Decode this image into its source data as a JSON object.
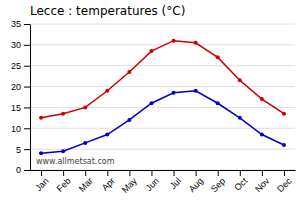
{
  "chart_data": {
    "type": "line",
    "title": "Lecce : temperatures (°C)",
    "categories": [
      "Jan",
      "Feb",
      "Mar",
      "Apr",
      "May",
      "Jun",
      "Jul",
      "Aug",
      "Sep",
      "Oct",
      "Nov",
      "Dec"
    ],
    "series": [
      {
        "color": "#cc0000",
        "values": [
          12.5,
          13.5,
          15.0,
          19.0,
          23.5,
          28.5,
          31.0,
          30.5,
          27.0,
          21.5,
          17.0,
          13.5
        ]
      },
      {
        "color": "#0000cc",
        "values": [
          4.0,
          4.5,
          6.5,
          8.5,
          12.0,
          16.0,
          18.5,
          19.0,
          16.0,
          12.5,
          8.5,
          6.0
        ]
      }
    ],
    "ylim": [
      0,
      35
    ],
    "yticks": [
      0,
      5,
      10,
      15,
      20,
      25,
      30,
      35
    ],
    "grid": true,
    "marker": "circle",
    "line_style": "solid",
    "annotations": [
      "www.allmetsat.com"
    ]
  }
}
